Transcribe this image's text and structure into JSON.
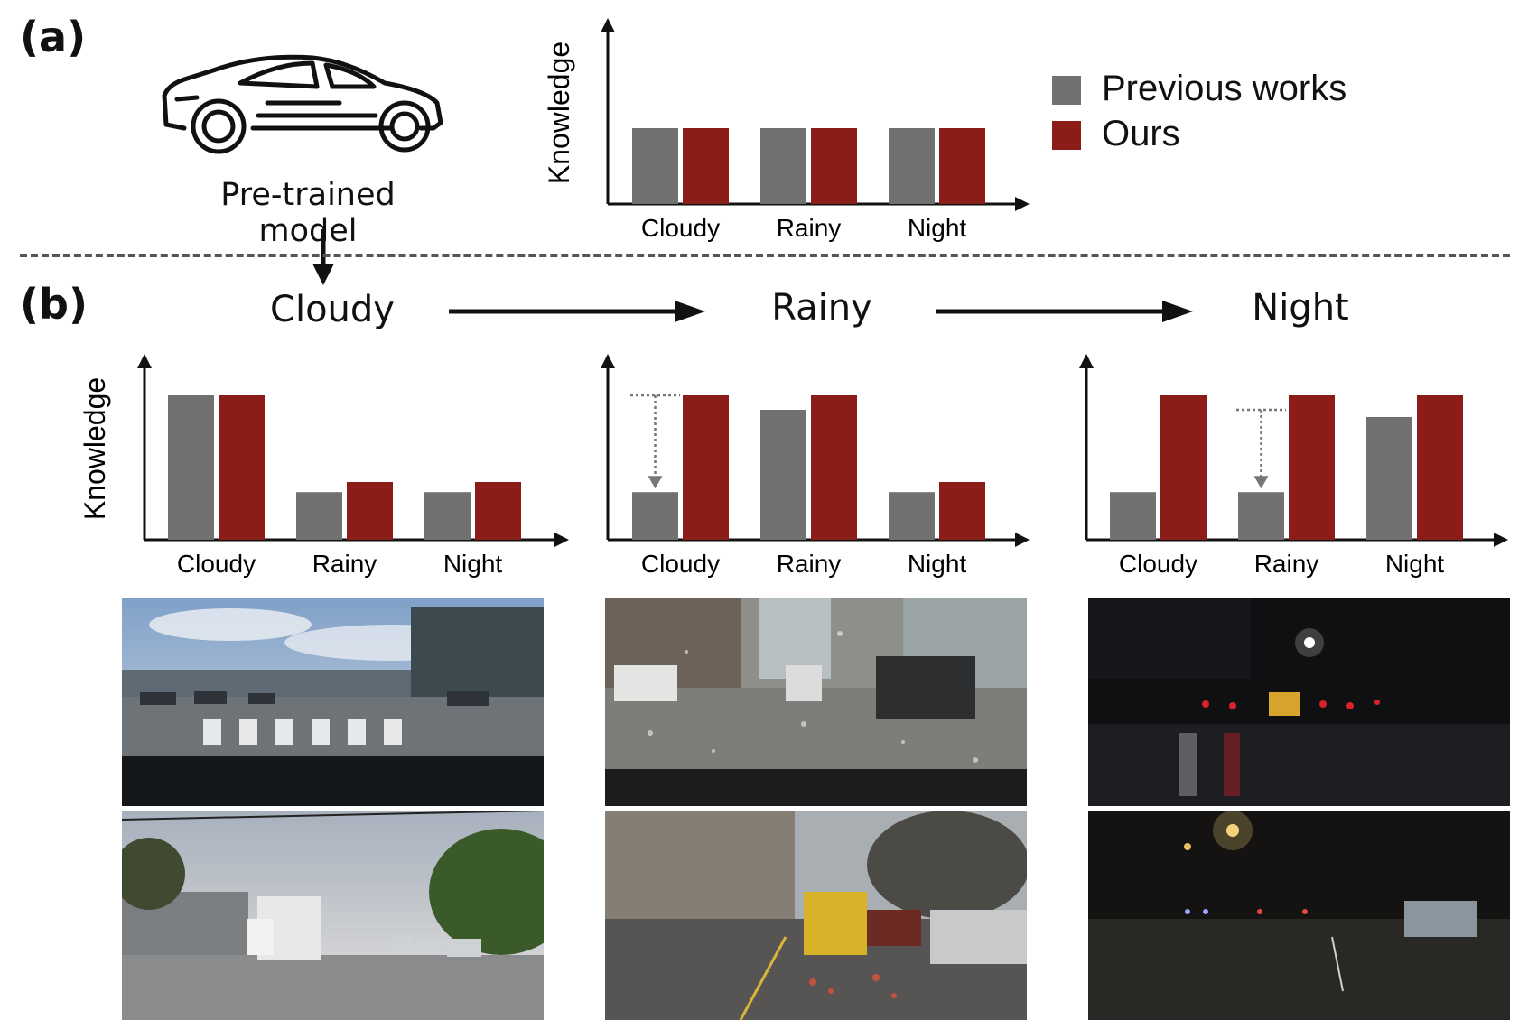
{
  "panels": {
    "a_label": "(a)",
    "b_label": "(b)"
  },
  "model": {
    "label": "Pre-trained model",
    "icon": "car-icon"
  },
  "legend": {
    "items": [
      {
        "label": "Previous works",
        "color": "#717171"
      },
      {
        "label": "Ours",
        "color": "#8b1c17"
      }
    ]
  },
  "stages": [
    {
      "name": "Cloudy"
    },
    {
      "name": "Rainy"
    },
    {
      "name": "Night"
    }
  ],
  "colors": {
    "previous": "#717171",
    "ours": "#8b1c17",
    "axis": "#111111",
    "divider": "#555555"
  },
  "chart_data": [
    {
      "id": "summary",
      "type": "bar",
      "ylabel": "Knowledge",
      "categories": [
        "Cloudy",
        "Rainy",
        "Night"
      ],
      "series": [
        {
          "name": "Previous works",
          "values": [
            0.4,
            0.4,
            0.4
          ]
        },
        {
          "name": "Ours",
          "values": [
            0.4,
            0.4,
            0.4
          ]
        }
      ],
      "ylim": [
        0,
        1
      ]
    },
    {
      "id": "after-cloudy",
      "type": "bar",
      "ylabel": "Knowledge",
      "categories": [
        "Cloudy",
        "Rainy",
        "Night"
      ],
      "series": [
        {
          "name": "Previous works",
          "values": [
            1.0,
            0.33,
            0.33
          ]
        },
        {
          "name": "Ours",
          "values": [
            1.0,
            0.4,
            0.4
          ]
        }
      ],
      "ylim": [
        0,
        1
      ]
    },
    {
      "id": "after-rainy",
      "type": "bar",
      "ylabel": "",
      "categories": [
        "Cloudy",
        "Rainy",
        "Night"
      ],
      "series": [
        {
          "name": "Previous works",
          "values": [
            0.33,
            0.9,
            0.33
          ]
        },
        {
          "name": "Ours",
          "values": [
            1.0,
            1.0,
            0.4
          ]
        }
      ],
      "drop_from": {
        "category": "Cloudy",
        "value_from": 1.0,
        "value_to": 0.33
      },
      "ylim": [
        0,
        1
      ]
    },
    {
      "id": "after-night",
      "type": "bar",
      "ylabel": "",
      "categories": [
        "Cloudy",
        "Rainy",
        "Night"
      ],
      "series": [
        {
          "name": "Previous works",
          "values": [
            0.33,
            0.33,
            0.85
          ]
        },
        {
          "name": "Ours",
          "values": [
            1.0,
            1.0,
            1.0
          ]
        }
      ],
      "drop_from": {
        "category": "Rainy",
        "value_from": 0.9,
        "value_to": 0.33
      },
      "ylim": [
        0,
        1
      ]
    }
  ]
}
